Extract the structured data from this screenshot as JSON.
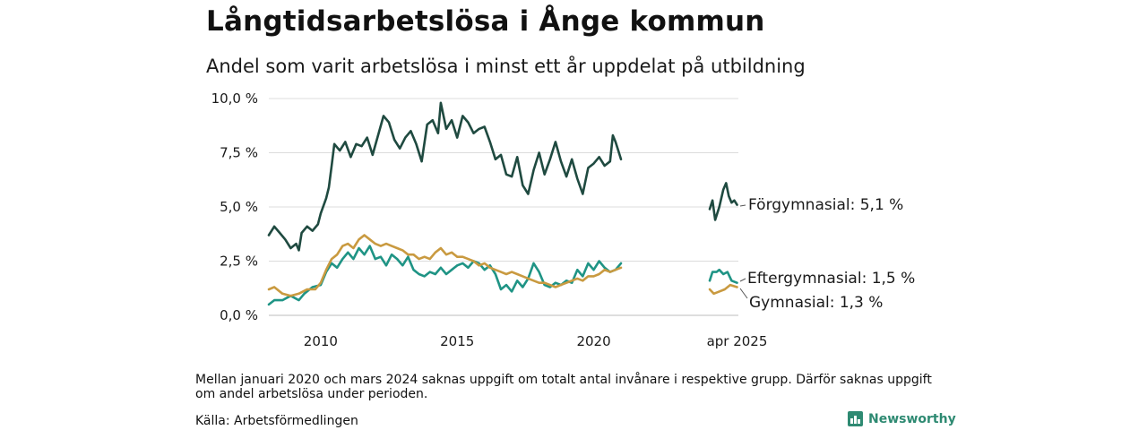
{
  "title": "Långtidsarbetslösa i Ånge kommun",
  "subtitle": "Andel som varit arbetslösa i minst ett år uppdelat på utbildning",
  "note": "Mellan januari 2020 och mars 2024 saknas uppgift om totalt antal invånare i respektive grupp. Därför saknas uppgift om andel arbetslösa under perioden.",
  "source": "Källa: Arbetsförmedlingen",
  "brand": {
    "name": "Newsworthy",
    "icon": "newsworthy-logo-icon",
    "color": "#2e8a72"
  },
  "chart_data": {
    "type": "line",
    "xlabel": "",
    "ylabel": "",
    "ylim": [
      0,
      10
    ],
    "xlim": [
      2008.1,
      2025.3
    ],
    "yticks": [
      "0,0 %",
      "2,5 %",
      "5,0 %",
      "7,5 %",
      "10,0 %"
    ],
    "ytick_values": [
      0,
      2.5,
      5,
      7.5,
      10
    ],
    "xticks": [
      "2010",
      "2015",
      "2020",
      "apr 2025"
    ],
    "xtick_values": [
      2010,
      2015,
      2020,
      2025.25
    ],
    "grid": true,
    "series": [
      {
        "name": "Förgymnasial",
        "end_label": "Förgymnasial: 5,1 %",
        "color": "#1f4a40",
        "segments": [
          [
            [
              2008.1,
              3.7
            ],
            [
              2008.3,
              4.1
            ],
            [
              2008.5,
              3.8
            ],
            [
              2008.7,
              3.5
            ],
            [
              2008.9,
              3.1
            ],
            [
              2009.1,
              3.3
            ],
            [
              2009.2,
              3.0
            ],
            [
              2009.3,
              3.8
            ],
            [
              2009.5,
              4.1
            ],
            [
              2009.7,
              3.9
            ],
            [
              2009.9,
              4.2
            ],
            [
              2010.0,
              4.7
            ],
            [
              2010.2,
              5.4
            ],
            [
              2010.3,
              5.9
            ],
            [
              2010.4,
              6.9
            ],
            [
              2010.5,
              7.9
            ],
            [
              2010.7,
              7.6
            ],
            [
              2010.9,
              8.0
            ],
            [
              2011.1,
              7.3
            ],
            [
              2011.3,
              7.9
            ],
            [
              2011.5,
              7.8
            ],
            [
              2011.7,
              8.2
            ],
            [
              2011.9,
              7.4
            ],
            [
              2012.1,
              8.3
            ],
            [
              2012.3,
              9.2
            ],
            [
              2012.5,
              8.9
            ],
            [
              2012.7,
              8.1
            ],
            [
              2012.9,
              7.7
            ],
            [
              2013.1,
              8.2
            ],
            [
              2013.3,
              8.5
            ],
            [
              2013.5,
              7.9
            ],
            [
              2013.7,
              7.1
            ],
            [
              2013.9,
              8.8
            ],
            [
              2014.1,
              9.0
            ],
            [
              2014.3,
              8.4
            ],
            [
              2014.4,
              9.8
            ],
            [
              2014.6,
              8.6
            ],
            [
              2014.8,
              9.0
            ],
            [
              2015.0,
              8.2
            ],
            [
              2015.2,
              9.2
            ],
            [
              2015.4,
              8.9
            ],
            [
              2015.6,
              8.4
            ],
            [
              2015.8,
              8.6
            ],
            [
              2016.0,
              8.7
            ],
            [
              2016.2,
              8.0
            ],
            [
              2016.4,
              7.2
            ],
            [
              2016.6,
              7.4
            ],
            [
              2016.8,
              6.5
            ],
            [
              2017.0,
              6.4
            ],
            [
              2017.2,
              7.3
            ],
            [
              2017.4,
              6.0
            ],
            [
              2017.6,
              5.6
            ],
            [
              2017.8,
              6.7
            ],
            [
              2018.0,
              7.5
            ],
            [
              2018.2,
              6.5
            ],
            [
              2018.4,
              7.2
            ],
            [
              2018.6,
              8.0
            ],
            [
              2018.8,
              7.1
            ],
            [
              2019.0,
              6.4
            ],
            [
              2019.2,
              7.2
            ],
            [
              2019.4,
              6.3
            ],
            [
              2019.6,
              5.6
            ],
            [
              2019.8,
              6.8
            ],
            [
              2020.0,
              7.0
            ],
            [
              2020.2,
              7.3
            ],
            [
              2020.4,
              6.9
            ],
            [
              2020.6,
              7.1
            ],
            [
              2020.7,
              8.3
            ],
            [
              2020.8,
              8.0
            ],
            [
              2020.9,
              7.6
            ],
            [
              2021.0,
              7.2
            ]
          ],
          [
            [
              2024.25,
              4.9
            ],
            [
              2024.35,
              5.3
            ],
            [
              2024.45,
              4.4
            ],
            [
              2024.6,
              5.0
            ],
            [
              2024.75,
              5.8
            ],
            [
              2024.85,
              6.1
            ],
            [
              2024.95,
              5.5
            ],
            [
              2025.05,
              5.2
            ],
            [
              2025.15,
              5.3
            ],
            [
              2025.25,
              5.1
            ]
          ]
        ]
      },
      {
        "name": "Eftergymnasial",
        "end_label": "Eftergymnasial: 1,5 %",
        "color": "#1f9485",
        "segments": [
          [
            [
              2008.1,
              0.5
            ],
            [
              2008.3,
              0.7
            ],
            [
              2008.6,
              0.7
            ],
            [
              2008.9,
              0.9
            ],
            [
              2009.2,
              0.7
            ],
            [
              2009.4,
              1.0
            ],
            [
              2009.7,
              1.3
            ],
            [
              2010.0,
              1.4
            ],
            [
              2010.2,
              2.0
            ],
            [
              2010.4,
              2.4
            ],
            [
              2010.6,
              2.2
            ],
            [
              2010.8,
              2.6
            ],
            [
              2011.0,
              2.9
            ],
            [
              2011.2,
              2.6
            ],
            [
              2011.4,
              3.1
            ],
            [
              2011.6,
              2.8
            ],
            [
              2011.8,
              3.2
            ],
            [
              2012.0,
              2.6
            ],
            [
              2012.2,
              2.7
            ],
            [
              2012.4,
              2.3
            ],
            [
              2012.6,
              2.8
            ],
            [
              2012.8,
              2.6
            ],
            [
              2013.0,
              2.3
            ],
            [
              2013.2,
              2.7
            ],
            [
              2013.4,
              2.1
            ],
            [
              2013.6,
              1.9
            ],
            [
              2013.8,
              1.8
            ],
            [
              2014.0,
              2.0
            ],
            [
              2014.2,
              1.9
            ],
            [
              2014.4,
              2.2
            ],
            [
              2014.6,
              1.9
            ],
            [
              2014.8,
              2.1
            ],
            [
              2015.0,
              2.3
            ],
            [
              2015.2,
              2.4
            ],
            [
              2015.4,
              2.2
            ],
            [
              2015.6,
              2.5
            ],
            [
              2015.8,
              2.4
            ],
            [
              2016.0,
              2.1
            ],
            [
              2016.2,
              2.3
            ],
            [
              2016.4,
              1.9
            ],
            [
              2016.6,
              1.2
            ],
            [
              2016.8,
              1.4
            ],
            [
              2017.0,
              1.1
            ],
            [
              2017.2,
              1.6
            ],
            [
              2017.4,
              1.3
            ],
            [
              2017.6,
              1.7
            ],
            [
              2017.8,
              2.4
            ],
            [
              2018.0,
              2.0
            ],
            [
              2018.2,
              1.4
            ],
            [
              2018.4,
              1.3
            ],
            [
              2018.6,
              1.5
            ],
            [
              2018.8,
              1.4
            ],
            [
              2019.0,
              1.6
            ],
            [
              2019.2,
              1.5
            ],
            [
              2019.4,
              2.1
            ],
            [
              2019.6,
              1.8
            ],
            [
              2019.8,
              2.4
            ],
            [
              2020.0,
              2.1
            ],
            [
              2020.2,
              2.5
            ],
            [
              2020.4,
              2.2
            ],
            [
              2020.6,
              2.0
            ],
            [
              2020.8,
              2.1
            ],
            [
              2021.0,
              2.4
            ]
          ],
          [
            [
              2024.25,
              1.6
            ],
            [
              2024.35,
              2.0
            ],
            [
              2024.5,
              2.0
            ],
            [
              2024.6,
              2.1
            ],
            [
              2024.75,
              1.9
            ],
            [
              2024.9,
              2.0
            ],
            [
              2025.05,
              1.6
            ],
            [
              2025.25,
              1.5
            ]
          ]
        ]
      },
      {
        "name": "Gymnasial",
        "end_label": "Gymnasial: 1,3 %",
        "color": "#c99a40",
        "segments": [
          [
            [
              2008.1,
              1.2
            ],
            [
              2008.3,
              1.3
            ],
            [
              2008.6,
              1.0
            ],
            [
              2008.9,
              0.9
            ],
            [
              2009.2,
              1.0
            ],
            [
              2009.5,
              1.2
            ],
            [
              2009.8,
              1.2
            ],
            [
              2010.0,
              1.5
            ],
            [
              2010.2,
              2.1
            ],
            [
              2010.4,
              2.6
            ],
            [
              2010.6,
              2.8
            ],
            [
              2010.8,
              3.2
            ],
            [
              2011.0,
              3.3
            ],
            [
              2011.2,
              3.1
            ],
            [
              2011.4,
              3.5
            ],
            [
              2011.6,
              3.7
            ],
            [
              2011.8,
              3.5
            ],
            [
              2012.0,
              3.3
            ],
            [
              2012.2,
              3.2
            ],
            [
              2012.4,
              3.3
            ],
            [
              2012.6,
              3.2
            ],
            [
              2012.8,
              3.1
            ],
            [
              2013.0,
              3.0
            ],
            [
              2013.2,
              2.8
            ],
            [
              2013.4,
              2.8
            ],
            [
              2013.6,
              2.6
            ],
            [
              2013.8,
              2.7
            ],
            [
              2014.0,
              2.6
            ],
            [
              2014.2,
              2.9
            ],
            [
              2014.4,
              3.1
            ],
            [
              2014.6,
              2.8
            ],
            [
              2014.8,
              2.9
            ],
            [
              2015.0,
              2.7
            ],
            [
              2015.2,
              2.7
            ],
            [
              2015.4,
              2.6
            ],
            [
              2015.6,
              2.5
            ],
            [
              2015.8,
              2.3
            ],
            [
              2016.0,
              2.4
            ],
            [
              2016.2,
              2.2
            ],
            [
              2016.4,
              2.1
            ],
            [
              2016.6,
              2.0
            ],
            [
              2016.8,
              1.9
            ],
            [
              2017.0,
              2.0
            ],
            [
              2017.2,
              1.9
            ],
            [
              2017.4,
              1.8
            ],
            [
              2017.6,
              1.7
            ],
            [
              2017.8,
              1.6
            ],
            [
              2018.0,
              1.5
            ],
            [
              2018.2,
              1.5
            ],
            [
              2018.4,
              1.4
            ],
            [
              2018.6,
              1.3
            ],
            [
              2018.8,
              1.4
            ],
            [
              2019.0,
              1.5
            ],
            [
              2019.2,
              1.6
            ],
            [
              2019.4,
              1.7
            ],
            [
              2019.6,
              1.6
            ],
            [
              2019.8,
              1.8
            ],
            [
              2020.0,
              1.8
            ],
            [
              2020.2,
              1.9
            ],
            [
              2020.4,
              2.1
            ],
            [
              2020.6,
              2.0
            ],
            [
              2020.8,
              2.1
            ],
            [
              2021.0,
              2.2
            ]
          ],
          [
            [
              2024.25,
              1.2
            ],
            [
              2024.4,
              1.0
            ],
            [
              2024.6,
              1.1
            ],
            [
              2024.8,
              1.2
            ],
            [
              2025.0,
              1.4
            ],
            [
              2025.25,
              1.3
            ]
          ]
        ]
      }
    ]
  }
}
